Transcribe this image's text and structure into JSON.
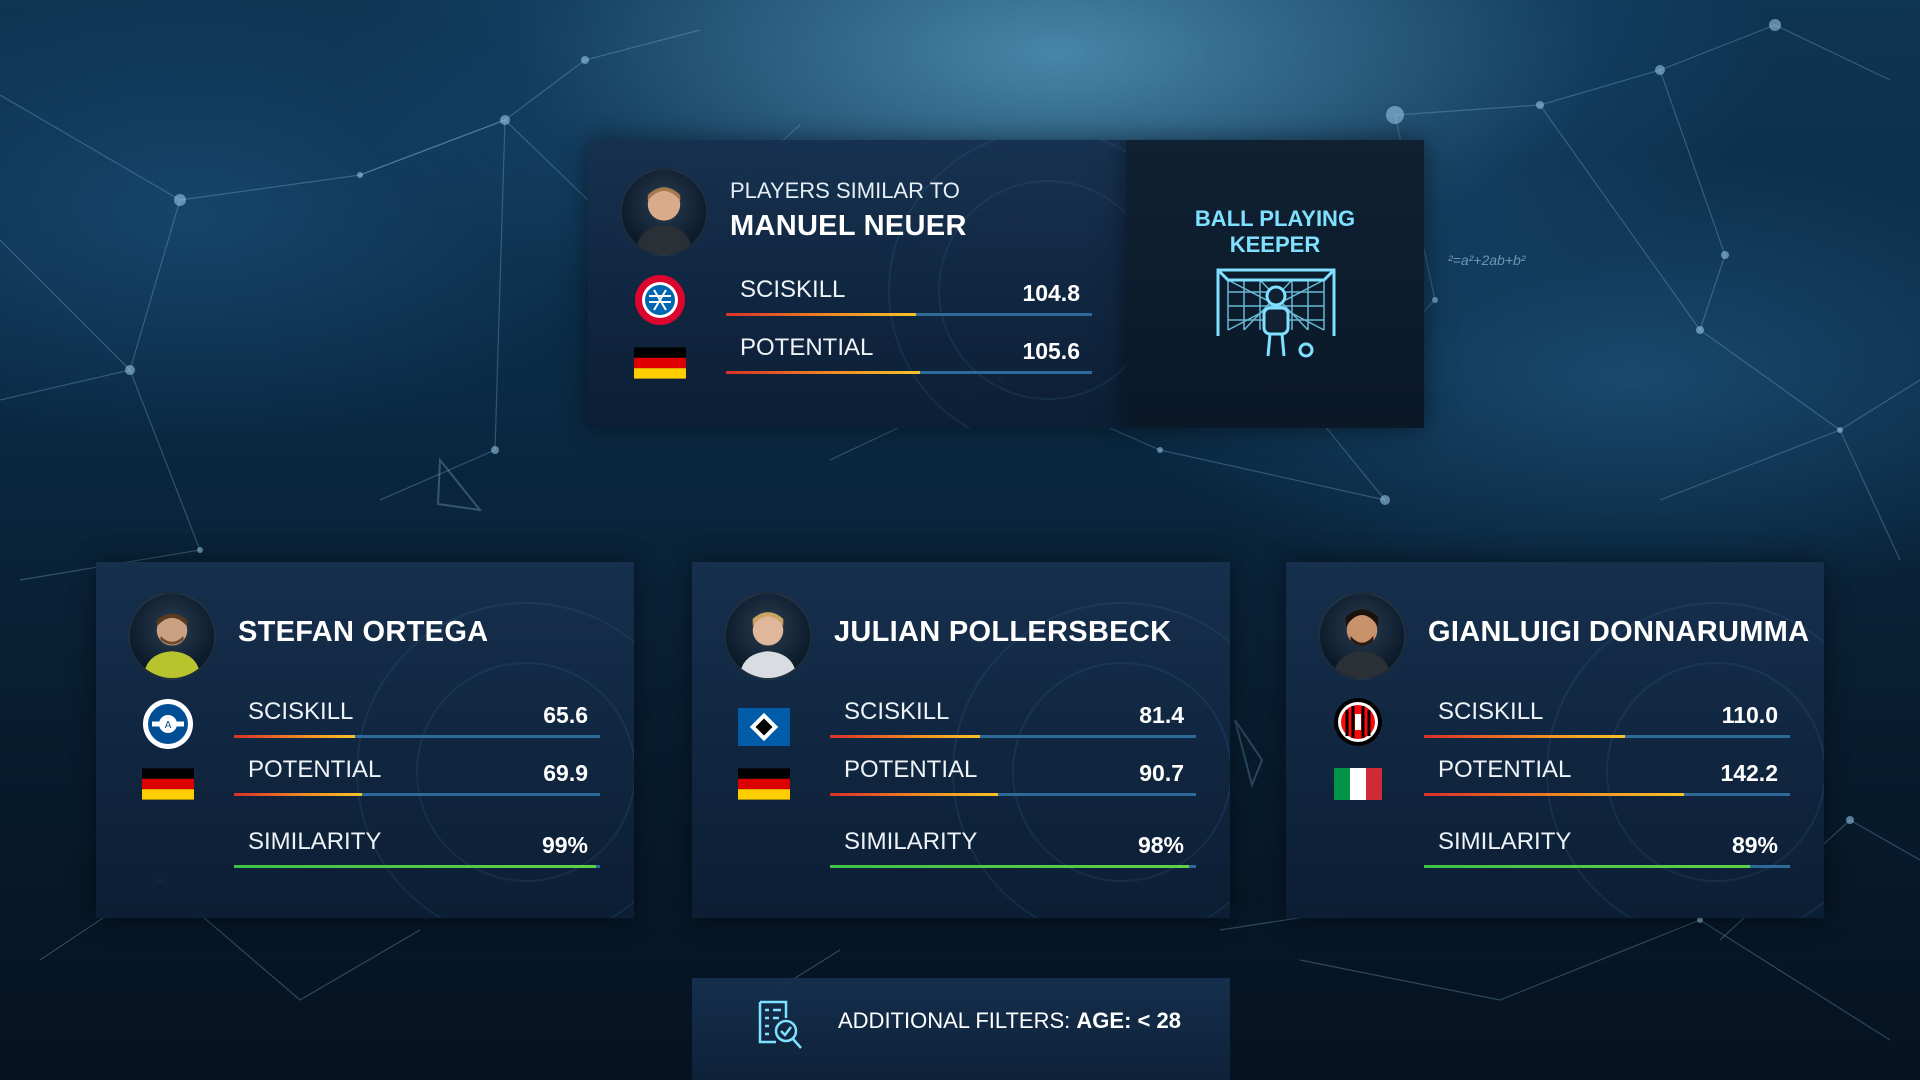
{
  "target": {
    "subtitle": "PLAYERS SIMILAR TO",
    "name": "MANUEL NEUER",
    "club_badge": "fc-bayern-badge",
    "flag": "germany-flag",
    "stats": [
      {
        "label": "SCISKILL",
        "value": "104.8",
        "fill": 0.52
      },
      {
        "label": "POTENTIAL",
        "value": "105.6",
        "fill": 0.53
      }
    ]
  },
  "role": {
    "title_line1": "BALL PLAYING",
    "title_line2": "KEEPER",
    "icon": "goalkeeper-goal-icon"
  },
  "players": [
    {
      "name": "STEFAN ORTEGA",
      "club_badge": "arminia-bielefeld-badge",
      "flag": "germany-flag",
      "stats": [
        {
          "label": "SCISKILL",
          "value": "65.6",
          "fill": 0.33
        },
        {
          "label": "POTENTIAL",
          "value": "69.9",
          "fill": 0.35
        },
        {
          "label": "SIMILARITY",
          "value": "99%",
          "fill": 0.99
        }
      ]
    },
    {
      "name": "JULIAN POLLERSBECK",
      "club_badge": "hamburger-sv-badge",
      "flag": "germany-flag",
      "stats": [
        {
          "label": "SCISKILL",
          "value": "81.4",
          "fill": 0.41
        },
        {
          "label": "POTENTIAL",
          "value": "90.7",
          "fill": 0.46
        },
        {
          "label": "SIMILARITY",
          "value": "98%",
          "fill": 0.98
        }
      ]
    },
    {
      "name": "GIANLUIGI DONNARUMMA",
      "club_badge": "ac-milan-badge",
      "flag": "italy-flag",
      "stats": [
        {
          "label": "SCISKILL",
          "value": "110.0",
          "fill": 0.55
        },
        {
          "label": "POTENTIAL",
          "value": "142.2",
          "fill": 0.71
        },
        {
          "label": "SIMILARITY",
          "value": "89%",
          "fill": 0.89
        }
      ]
    }
  ],
  "filters": {
    "label": "ADDITIONAL FILTERS:",
    "value": "AGE: < 28",
    "icon": "filter-search-icon"
  },
  "colors": {
    "accent_cyan": "#7fe0ff",
    "bar_track": "#2c6a9a",
    "bar_start": "#d9302a",
    "bar_end": "#f6c22b",
    "similarity_green": "#3fc347"
  }
}
